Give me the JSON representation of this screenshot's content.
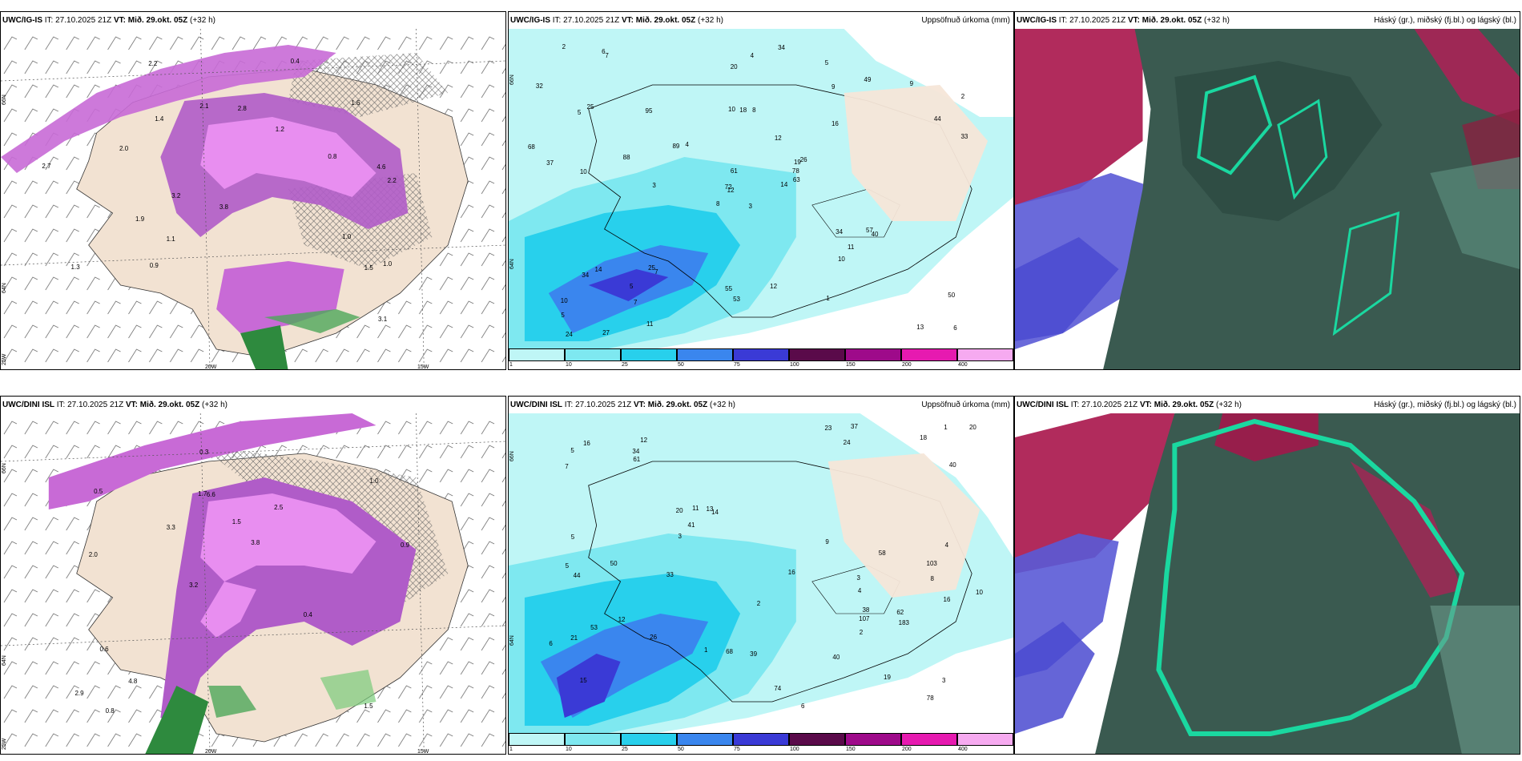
{
  "panels": [
    {
      "model": "UWC/IG-IS",
      "it": "IT: 27.10.2025 21Z",
      "vt": "VT: Mið. 29.okt. 05Z",
      "lead": "(+32 h)",
      "right": ""
    },
    {
      "model": "UWC/IG-IS",
      "it": "IT: 27.10.2025 21Z",
      "vt": "VT: Mið. 29.okt. 05Z",
      "lead": "(+32 h)",
      "right": "Uppsöfnuð úrkoma (mm)"
    },
    {
      "model": "UWC/IG-IS",
      "it": "IT: 27.10.2025 21Z",
      "vt": "VT: Mið. 29.okt. 05Z",
      "lead": "(+32 h)",
      "right": "Háský (gr.), miðský (fj.bl.) og lágský (bl.)"
    },
    {
      "model": "UWC/DINI ISL",
      "it": "IT: 27.10.2025 21Z",
      "vt": "VT: Mið. 29.okt. 05Z",
      "lead": "(+32 h)",
      "right": ""
    },
    {
      "model": "UWC/DINI ISL",
      "it": "IT: 27.10.2025 21Z",
      "vt": "VT: Mið. 29.okt. 05Z",
      "lead": "(+32 h)",
      "right": "Uppsöfnuð úrkoma (mm)"
    },
    {
      "model": "UWC/DINI ISL",
      "it": "IT: 27.10.2025 21Z",
      "vt": "VT: Mið. 29.okt. 05Z",
      "lead": "(+32 h)",
      "right": "Háský (gr.), miðský (fj.bl.) og lágský (bl.)"
    }
  ],
  "grid_labels": {
    "lat_66": "66N",
    "lat_64": "64N",
    "lat_25w": "25W",
    "lon_20w": "20W",
    "lon_15w": "15W"
  },
  "colorbar": {
    "ticks": [
      "1",
      "10",
      "25",
      "50",
      "75",
      "100",
      "150",
      "200",
      "400"
    ],
    "colors": [
      "#bff6f6",
      "#7ee8f0",
      "#28d0ec",
      "#3a86ee",
      "#3a3ad6",
      "#5a0a4a",
      "#9e0a8a",
      "#e61ab0",
      "#f6aaf0"
    ]
  },
  "precip_top_labels": [
    "3",
    "5",
    "12",
    "10",
    "19",
    "7",
    "5",
    "8",
    "9",
    "14",
    "7",
    "6",
    "10",
    "2",
    "8",
    "16",
    "27",
    "10",
    "12",
    "14",
    "4",
    "5",
    "7",
    "18",
    "26",
    "40",
    "25",
    "20",
    "37",
    "34",
    "33",
    "72",
    "55",
    "61",
    "95",
    "49",
    "25",
    "13",
    "50",
    "57",
    "34",
    "89",
    "88",
    "10",
    "11",
    "68",
    "78",
    "24",
    "53",
    "63",
    "34",
    "44",
    "32",
    "11",
    "1",
    "5",
    "6",
    "2",
    "12",
    "9",
    "4",
    "3"
  ],
  "precip_bottom_labels": [
    "4",
    "8",
    "15",
    "12",
    "14",
    "19",
    "21",
    "24",
    "20",
    "6",
    "7",
    "5",
    "5",
    "3",
    "1",
    "4",
    "2",
    "16",
    "13",
    "12",
    "20",
    "18",
    "3",
    "16",
    "23",
    "34",
    "38",
    "44",
    "61",
    "58",
    "74",
    "40",
    "41",
    "33",
    "103",
    "183",
    "107",
    "50",
    "39",
    "53",
    "40",
    "37",
    "78",
    "68",
    "62",
    "26",
    "6",
    "16",
    "9",
    "5",
    "10",
    "11",
    "1",
    "3",
    "2"
  ],
  "lpi_top_labels": [
    "1.4",
    "4.6",
    "1.2",
    "2.2",
    "3.2",
    "1.0",
    "1.1",
    "0.4",
    "1.5",
    "1.6",
    "2.0",
    "1.0",
    "0.8",
    "0.9",
    "1.3",
    "3.8",
    "1.9",
    "2.7",
    "2.2",
    "2.1",
    "3.1",
    "2.8"
  ],
  "lpi_bottom_labels": [
    "1.5",
    "2.0",
    "1.0",
    "3.2",
    "2.5",
    "0.8",
    "1.7",
    "1.5",
    "0.6",
    "3.3",
    "2.9",
    "4.8",
    "6.6",
    "3.8",
    "0.4",
    "0.5",
    "0.3",
    "0.9"
  ]
}
